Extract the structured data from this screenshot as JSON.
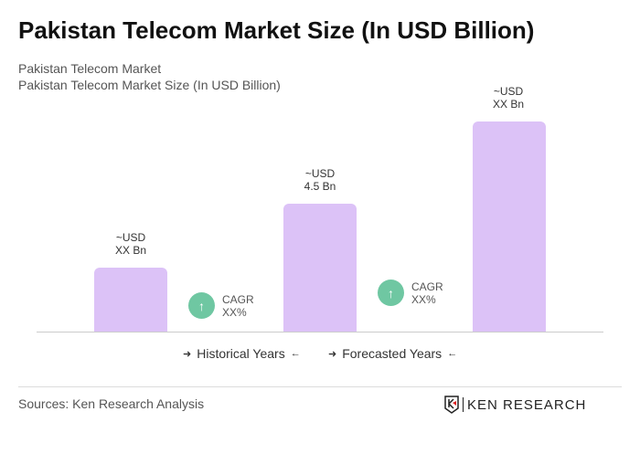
{
  "title": "Pakistan Telecom Market Size (In USD Billion)",
  "subtitle1": "Pakistan Telecom Market",
  "subtitle2": "Pakistan Telecom Market Size (In USD Billion)",
  "chart_data": {
    "type": "bar",
    "bars": [
      {
        "label_line1": "~USD",
        "label_line2": "XX Bn"
      },
      {
        "label_line1": "~USD",
        "label_line2": "4.5 Bn",
        "value": 4.5
      },
      {
        "label_line1": "~USD",
        "label_line2": "XX Bn"
      }
    ],
    "cagr": [
      {
        "label": "CAGR",
        "value": "XX%"
      },
      {
        "label": "CAGR",
        "value": "XX%"
      }
    ],
    "legend": [
      "Historical Years",
      "Forecasted Years"
    ],
    "bar_color": "#dcc2f7",
    "cagr_color": "#6fc7a2"
  },
  "source": "Sources: Ken Research Analysis",
  "logo": "KEN RESEARCH"
}
